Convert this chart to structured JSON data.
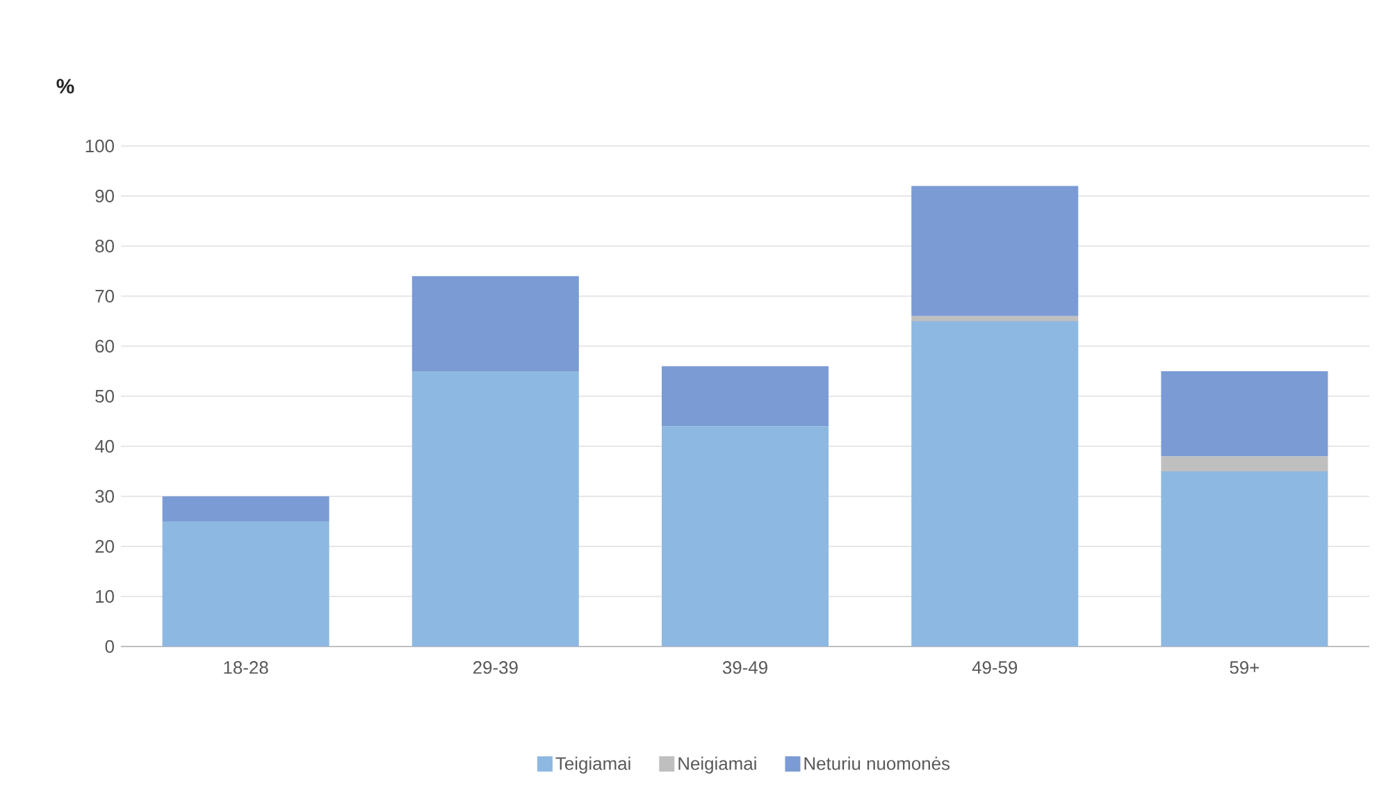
{
  "chart_data": {
    "type": "bar",
    "stacked": true,
    "ylabel": "%",
    "categories": [
      "18-28",
      "29-39",
      "39-49",
      "49-59",
      "59+"
    ],
    "series": [
      {
        "name": "Teigiamai",
        "color": "#8db8e1",
        "values": [
          25,
          55,
          44,
          65,
          35
        ]
      },
      {
        "name": "Neigiamai",
        "color": "#bfbfbf",
        "values": [
          0,
          0,
          0,
          1,
          3
        ]
      },
      {
        "name": "Neturiu nuomonės",
        "color": "#7b9bd4",
        "values": [
          5,
          19,
          12,
          26,
          17
        ]
      }
    ],
    "ylim": [
      0,
      100
    ],
    "yticks": [
      0,
      10,
      20,
      30,
      40,
      50,
      60,
      70,
      80,
      90,
      100
    ],
    "grid": "y",
    "legend": "bottom"
  }
}
